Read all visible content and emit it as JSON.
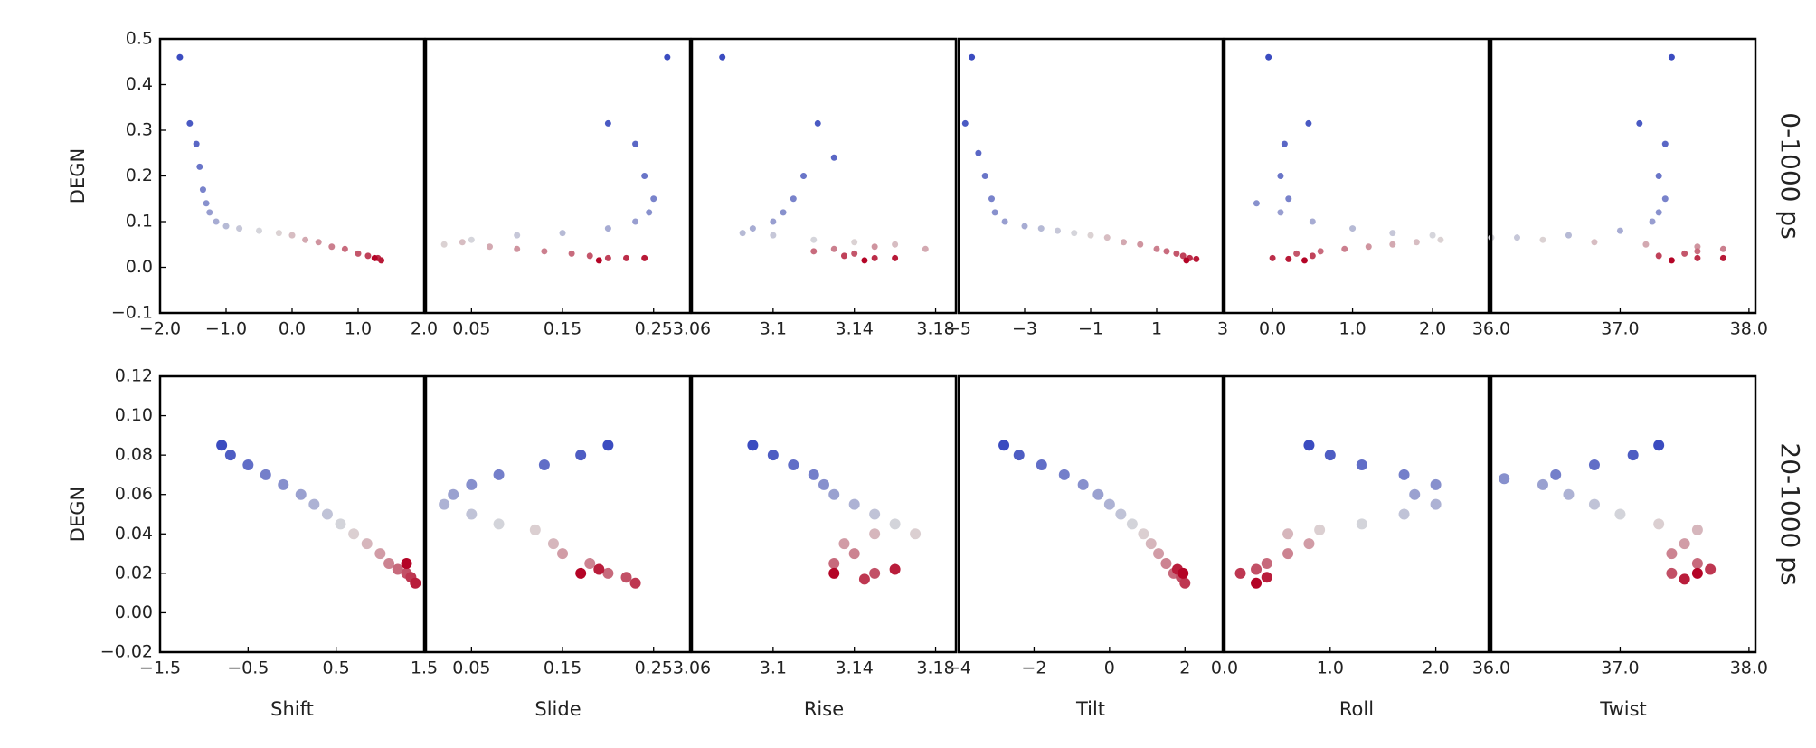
{
  "row_labels": [
    "0-1000 ps",
    "20-1000 ps"
  ],
  "colormap": [
    "#3b4cc0",
    "#dddcdc",
    "#b40426"
  ],
  "chart_data": [
    {
      "type": "scatter",
      "ylabel": "DEGN",
      "xlim": [
        -2,
        2
      ],
      "ylim": [
        -0.1,
        0.5
      ],
      "xticks": [
        {
          "value": -2,
          "label": "−2.0"
        },
        {
          "value": -1,
          "label": "−1.0"
        },
        {
          "value": 0,
          "label": "0.0"
        },
        {
          "value": 1,
          "label": "1.0"
        },
        {
          "value": 2,
          "label": "2.0"
        }
      ],
      "yticks": [
        {
          "value": -0.1,
          "label": "−0.1"
        },
        {
          "value": 0,
          "label": "0.0"
        },
        0.1,
        0.2,
        0.3,
        0.4,
        0.5
      ],
      "x": [
        -1.7,
        -1.55,
        -1.45,
        -1.4,
        -1.35,
        -1.3,
        -1.25,
        -1.15,
        -1.0,
        -0.8,
        -0.5,
        -0.2,
        0.0,
        0.2,
        0.4,
        0.6,
        0.8,
        1.0,
        1.15,
        1.3,
        1.35,
        1.25
      ],
      "y": [
        0.46,
        0.315,
        0.27,
        0.22,
        0.17,
        0.14,
        0.12,
        0.1,
        0.09,
        0.085,
        0.08,
        0.075,
        0.07,
        0.06,
        0.055,
        0.045,
        0.04,
        0.03,
        0.025,
        0.02,
        0.015,
        0.02
      ]
    },
    {
      "type": "scatter",
      "xlim": [
        0.0,
        0.29
      ],
      "ylim": [
        -0.1,
        0.5
      ],
      "xticks": [
        0.05,
        0.15,
        0.25
      ],
      "x": [
        0.265,
        0.2,
        0.23,
        0.24,
        0.25,
        0.245,
        0.23,
        0.2,
        0.15,
        0.1,
        0.05,
        0.02,
        0.04,
        0.07,
        0.1,
        0.13,
        0.16,
        0.18,
        0.2,
        0.22,
        0.24,
        0.19
      ],
      "y": [
        0.46,
        0.315,
        0.27,
        0.2,
        0.15,
        0.12,
        0.1,
        0.085,
        0.075,
        0.07,
        0.06,
        0.05,
        0.055,
        0.045,
        0.04,
        0.035,
        0.03,
        0.025,
        0.02,
        0.02,
        0.02,
        0.015
      ]
    },
    {
      "type": "scatter",
      "xlim": [
        3.06,
        3.19
      ],
      "ylim": [
        -0.1,
        0.5
      ],
      "xticks": [
        3.06,
        3.1,
        3.14,
        3.18
      ],
      "x": [
        3.075,
        3.122,
        3.13,
        3.115,
        3.11,
        3.105,
        3.1,
        3.09,
        3.085,
        3.1,
        3.12,
        3.14,
        3.16,
        3.175,
        3.15,
        3.13,
        3.12,
        3.14,
        3.135,
        3.15,
        3.16,
        3.145
      ],
      "y": [
        0.46,
        0.315,
        0.24,
        0.2,
        0.15,
        0.12,
        0.1,
        0.085,
        0.075,
        0.07,
        0.06,
        0.055,
        0.05,
        0.04,
        0.045,
        0.04,
        0.035,
        0.03,
        0.025,
        0.02,
        0.02,
        0.015
      ]
    },
    {
      "type": "scatter",
      "xlim": [
        -5,
        3
      ],
      "ylim": [
        -0.1,
        0.5
      ],
      "xticks": [
        {
          "value": -5,
          "label": "−5"
        },
        {
          "value": -3,
          "label": "−3"
        },
        {
          "value": -1,
          "label": "−1"
        },
        1,
        3
      ],
      "x": [
        -4.6,
        -4.8,
        -4.4,
        -4.2,
        -4.0,
        -3.9,
        -3.6,
        -3.0,
        -2.5,
        -2.0,
        -1.5,
        -1.0,
        -0.5,
        0.0,
        0.5,
        1.0,
        1.3,
        1.6,
        1.8,
        2.0,
        2.2,
        1.9
      ],
      "y": [
        0.46,
        0.315,
        0.25,
        0.2,
        0.15,
        0.12,
        0.1,
        0.09,
        0.085,
        0.08,
        0.075,
        0.07,
        0.065,
        0.055,
        0.05,
        0.04,
        0.035,
        0.03,
        0.025,
        0.02,
        0.018,
        0.015
      ]
    },
    {
      "type": "scatter",
      "xlim": [
        -0.6,
        2.7
      ],
      "ylim": [
        -0.1,
        0.5
      ],
      "xticks": [
        {
          "value": 0,
          "label": "0.0"
        },
        {
          "value": 1,
          "label": "1.0"
        },
        {
          "value": 2,
          "label": "2.0"
        }
      ],
      "x": [
        -0.05,
        0.45,
        0.15,
        0.1,
        0.2,
        -0.2,
        0.1,
        0.5,
        1.0,
        1.5,
        2.0,
        2.1,
        1.8,
        1.5,
        1.2,
        0.9,
        0.6,
        0.3,
        0.5,
        0.0,
        0.2,
        0.4
      ],
      "y": [
        0.46,
        0.315,
        0.27,
        0.2,
        0.15,
        0.14,
        0.12,
        0.1,
        0.085,
        0.075,
        0.07,
        0.06,
        0.055,
        0.05,
        0.045,
        0.04,
        0.035,
        0.03,
        0.025,
        0.02,
        0.018,
        0.015
      ]
    },
    {
      "type": "scatter",
      "xlim": [
        36.0,
        38.05
      ],
      "ylim": [
        -0.1,
        0.5
      ],
      "xticks": [
        {
          "value": 36,
          "label": "36.0"
        },
        {
          "value": 37,
          "label": "37.0"
        },
        {
          "value": 38,
          "label": "38.0"
        }
      ],
      "x": [
        37.4,
        37.15,
        37.35,
        37.3,
        37.35,
        37.3,
        37.25,
        37.0,
        36.6,
        36.2,
        36.0,
        36.4,
        36.8,
        37.2,
        37.6,
        37.8,
        37.6,
        37.5,
        37.3,
        37.6,
        37.8,
        37.4
      ],
      "y": [
        0.46,
        0.315,
        0.27,
        0.2,
        0.15,
        0.12,
        0.1,
        0.08,
        0.07,
        0.065,
        0.065,
        0.06,
        0.055,
        0.05,
        0.045,
        0.04,
        0.035,
        0.03,
        0.025,
        0.02,
        0.02,
        0.015
      ]
    },
    {
      "type": "scatter",
      "ylabel": "DEGN",
      "xlabel": "Shift",
      "xlim": [
        -1.5,
        1.5
      ],
      "ylim": [
        -0.02,
        0.12
      ],
      "xticks": [
        {
          "value": -1.5,
          "label": "−1.5"
        },
        {
          "value": -0.5,
          "label": "−0.5"
        },
        0.5,
        1.5
      ],
      "yticks": [
        {
          "value": -0.02,
          "label": "−0.02"
        },
        {
          "value": 0,
          "label": "0.00"
        },
        0.02,
        0.04,
        0.06,
        0.08,
        {
          "value": 0.1,
          "label": "0.10"
        },
        0.12
      ],
      "x": [
        -0.8,
        -0.7,
        -0.5,
        -0.3,
        -0.1,
        0.1,
        0.25,
        0.4,
        0.55,
        0.7,
        0.85,
        1.0,
        1.1,
        1.2,
        1.3,
        1.35,
        1.4,
        1.3
      ],
      "y": [
        0.085,
        0.08,
        0.075,
        0.07,
        0.065,
        0.06,
        0.055,
        0.05,
        0.045,
        0.04,
        0.035,
        0.03,
        0.025,
        0.022,
        0.02,
        0.018,
        0.015,
        0.025
      ]
    },
    {
      "type": "scatter",
      "xlabel": "Slide",
      "xlim": [
        0.0,
        0.29
      ],
      "ylim": [
        -0.02,
        0.12
      ],
      "xticks": [
        0.05,
        0.15,
        0.25
      ],
      "x": [
        0.2,
        0.17,
        0.13,
        0.08,
        0.05,
        0.03,
        0.02,
        0.05,
        0.08,
        0.12,
        0.14,
        0.15,
        0.18,
        0.2,
        0.22,
        0.23,
        0.19,
        0.17
      ],
      "y": [
        0.085,
        0.08,
        0.075,
        0.07,
        0.065,
        0.06,
        0.055,
        0.05,
        0.045,
        0.042,
        0.035,
        0.03,
        0.025,
        0.02,
        0.018,
        0.015,
        0.022,
        0.02
      ]
    },
    {
      "type": "scatter",
      "xlabel": "Rise",
      "xlim": [
        3.06,
        3.19
      ],
      "ylim": [
        -0.02,
        0.12
      ],
      "xticks": [
        3.06,
        3.1,
        3.14,
        3.18
      ],
      "x": [
        3.09,
        3.1,
        3.11,
        3.12,
        3.125,
        3.13,
        3.14,
        3.15,
        3.16,
        3.17,
        3.15,
        3.135,
        3.14,
        3.13,
        3.15,
        3.145,
        3.16,
        3.13
      ],
      "y": [
        0.085,
        0.08,
        0.075,
        0.07,
        0.065,
        0.06,
        0.055,
        0.05,
        0.045,
        0.04,
        0.04,
        0.035,
        0.03,
        0.025,
        0.02,
        0.017,
        0.022,
        0.02
      ]
    },
    {
      "type": "scatter",
      "xlabel": "Tilt",
      "xlim": [
        -4,
        3
      ],
      "ylim": [
        -0.02,
        0.12
      ],
      "xticks": [
        {
          "value": -4,
          "label": "−4"
        },
        {
          "value": -2,
          "label": "−2"
        },
        0,
        2
      ],
      "x": [
        -2.8,
        -2.4,
        -1.8,
        -1.2,
        -0.7,
        -0.3,
        0.0,
        0.3,
        0.6,
        0.9,
        1.1,
        1.3,
        1.5,
        1.7,
        1.9,
        2.0,
        1.8,
        1.95
      ],
      "y": [
        0.085,
        0.08,
        0.075,
        0.07,
        0.065,
        0.06,
        0.055,
        0.05,
        0.045,
        0.04,
        0.035,
        0.03,
        0.025,
        0.02,
        0.018,
        0.015,
        0.022,
        0.02
      ]
    },
    {
      "type": "scatter",
      "xlabel": "Roll",
      "xlim": [
        0,
        2.5
      ],
      "ylim": [
        -0.02,
        0.12
      ],
      "xticks": [
        {
          "value": 0,
          "label": "0.0"
        },
        {
          "value": 1,
          "label": "1.0"
        },
        {
          "value": 2,
          "label": "2.0"
        }
      ],
      "x": [
        0.8,
        1.0,
        1.3,
        1.7,
        2.0,
        1.8,
        2.0,
        1.7,
        1.3,
        0.9,
        0.6,
        0.8,
        0.6,
        0.4,
        0.3,
        0.15,
        0.4,
        0.3
      ],
      "y": [
        0.085,
        0.08,
        0.075,
        0.07,
        0.065,
        0.06,
        0.055,
        0.05,
        0.045,
        0.042,
        0.04,
        0.035,
        0.03,
        0.025,
        0.022,
        0.02,
        0.018,
        0.015
      ]
    },
    {
      "type": "scatter",
      "xlabel": "Twist",
      "xlim": [
        36.0,
        38.05
      ],
      "ylim": [
        -0.02,
        0.12
      ],
      "xticks": [
        {
          "value": 36,
          "label": "36.0"
        },
        {
          "value": 37,
          "label": "37.0"
        },
        {
          "value": 38,
          "label": "38.0"
        }
      ],
      "x": [
        37.3,
        37.1,
        36.8,
        36.5,
        36.1,
        36.4,
        36.6,
        36.8,
        37.0,
        37.3,
        37.6,
        37.5,
        37.4,
        37.6,
        37.4,
        37.7,
        37.5,
        37.6
      ],
      "y": [
        0.085,
        0.08,
        0.075,
        0.07,
        0.068,
        0.065,
        0.06,
        0.055,
        0.05,
        0.045,
        0.042,
        0.035,
        0.03,
        0.025,
        0.02,
        0.022,
        0.017,
        0.02
      ]
    }
  ]
}
